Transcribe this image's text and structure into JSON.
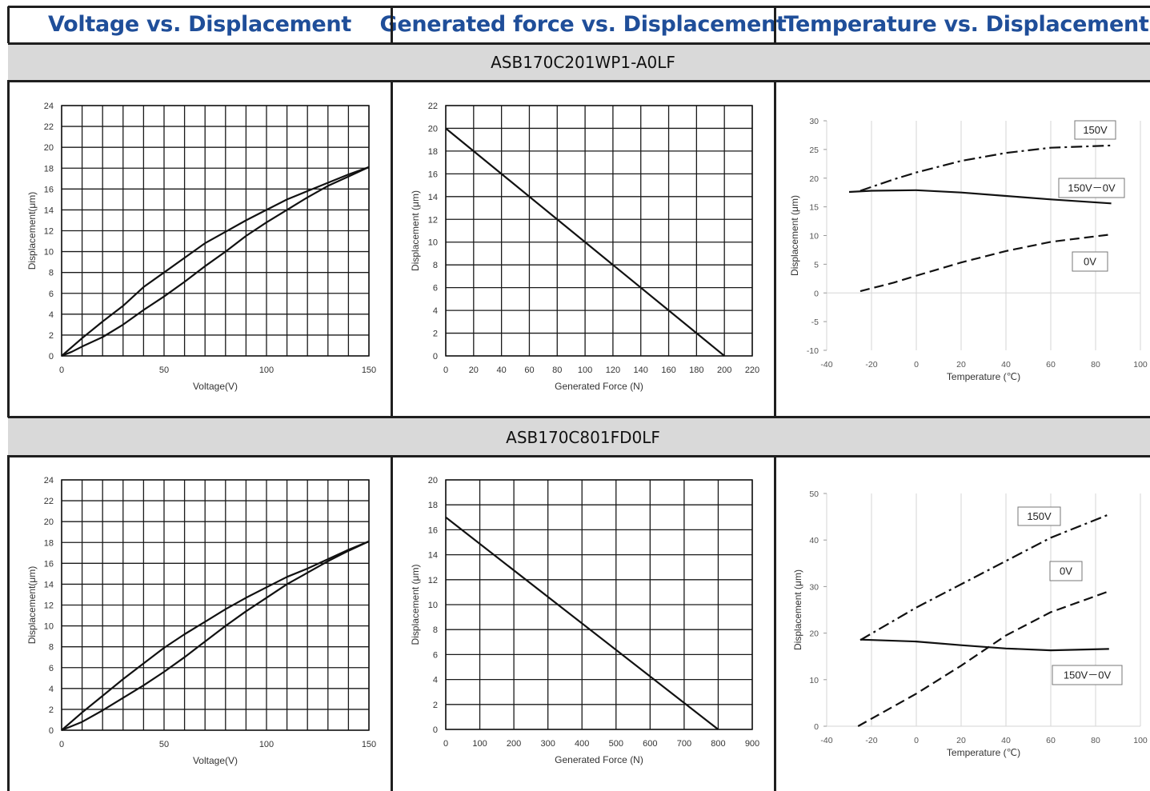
{
  "headers": [
    "Voltage vs. Displacement",
    "Generated force vs. Displacement",
    "Temperature vs. Displacement"
  ],
  "models": [
    "ASB170C201WP1-A0LF",
    "ASB170C801FD0LF"
  ],
  "chart_data": [
    {
      "type": "line",
      "xlabel": "Voltage(V)",
      "ylabel": "Displacement(μm)",
      "xlim": [
        0,
        150
      ],
      "ylim": [
        0,
        24
      ],
      "xticks": [
        0,
        50,
        100,
        150
      ],
      "yticks": [
        0,
        2,
        4,
        6,
        8,
        10,
        12,
        14,
        16,
        18,
        20,
        22,
        24
      ],
      "grid": "on",
      "series": [
        {
          "values": [
            [
              0,
              0
            ],
            [
              10,
              1.7
            ],
            [
              20,
              3.3
            ],
            [
              30,
              4.8
            ],
            [
              40,
              6.6
            ],
            [
              50,
              8.0
            ],
            [
              60,
              9.4
            ],
            [
              70,
              10.8
            ],
            [
              80,
              11.9
            ],
            [
              90,
              13.0
            ],
            [
              100,
              14.0
            ],
            [
              110,
              15.0
            ],
            [
              120,
              15.8
            ],
            [
              130,
              16.6
            ],
            [
              140,
              17.4
            ],
            [
              150,
              18.1
            ]
          ],
          "style": "solid"
        },
        {
          "values": [
            [
              0,
              0
            ],
            [
              5,
              0.4
            ],
            [
              10,
              0.9
            ],
            [
              20,
              1.8
            ],
            [
              30,
              3.0
            ],
            [
              40,
              4.4
            ],
            [
              50,
              5.7
            ],
            [
              60,
              7.1
            ],
            [
              70,
              8.6
            ],
            [
              80,
              10.0
            ],
            [
              90,
              11.5
            ],
            [
              100,
              12.8
            ],
            [
              110,
              14.0
            ],
            [
              120,
              15.2
            ],
            [
              130,
              16.3
            ],
            [
              140,
              17.2
            ],
            [
              150,
              18.1
            ]
          ],
          "style": "solid"
        }
      ]
    },
    {
      "type": "line",
      "xlabel": "Generated Force (N)",
      "ylabel": "Displacement (μm)",
      "xlim": [
        0,
        220
      ],
      "ylim": [
        0,
        22
      ],
      "xticks": [
        0,
        20,
        40,
        60,
        80,
        100,
        120,
        140,
        160,
        180,
        200,
        220
      ],
      "yticks": [
        0,
        2,
        4,
        6,
        8,
        10,
        12,
        14,
        16,
        18,
        20,
        22
      ],
      "grid": "on",
      "series": [
        {
          "values": [
            [
              0,
              20
            ],
            [
              200,
              0
            ]
          ],
          "style": "solid"
        }
      ]
    },
    {
      "type": "line",
      "xlabel": "Temperature (℃)",
      "ylabel": "Displacement (μm)",
      "xlim": [
        -40,
        100
      ],
      "ylim": [
        -10,
        30
      ],
      "xticks": [
        -40,
        -20,
        0,
        20,
        40,
        60,
        80,
        100
      ],
      "yticks": [
        -10,
        -5,
        0,
        5,
        10,
        15,
        20,
        25,
        30
      ],
      "grid": "vertical",
      "series": [
        {
          "name": "150V",
          "values": [
            [
              -25,
              17.8
            ],
            [
              -10,
              19.8
            ],
            [
              0,
              21.0
            ],
            [
              20,
              23.0
            ],
            [
              40,
              24.4
            ],
            [
              60,
              25.3
            ],
            [
              87,
              25.7
            ]
          ],
          "style": "dashdot"
        },
        {
          "name": "150V－0V",
          "values": [
            [
              -30,
              17.6
            ],
            [
              -20,
              17.8
            ],
            [
              0,
              17.9
            ],
            [
              20,
              17.5
            ],
            [
              40,
              16.9
            ],
            [
              60,
              16.3
            ],
            [
              87,
              15.6
            ]
          ],
          "style": "solid"
        },
        {
          "name": "0V",
          "values": [
            [
              -25,
              0.3
            ],
            [
              -10,
              1.8
            ],
            [
              0,
              3.0
            ],
            [
              20,
              5.3
            ],
            [
              40,
              7.3
            ],
            [
              60,
              8.9
            ],
            [
              87,
              10.2
            ]
          ],
          "style": "dashed"
        }
      ],
      "annotations": [
        "150V",
        "150V－0V",
        "0V"
      ]
    },
    {
      "type": "line",
      "xlabel": "Voltage(V)",
      "ylabel": "Displacement(μm)",
      "xlim": [
        0,
        150
      ],
      "ylim": [
        0,
        24
      ],
      "xticks": [
        0,
        50,
        100,
        150
      ],
      "yticks": [
        0,
        2,
        4,
        6,
        8,
        10,
        12,
        14,
        16,
        18,
        20,
        22,
        24
      ],
      "grid": "on",
      "series": [
        {
          "values": [
            [
              0,
              0
            ],
            [
              10,
              1.7
            ],
            [
              20,
              3.3
            ],
            [
              30,
              4.9
            ],
            [
              40,
              6.4
            ],
            [
              50,
              7.9
            ],
            [
              60,
              9.2
            ],
            [
              70,
              10.4
            ],
            [
              80,
              11.6
            ],
            [
              90,
              12.7
            ],
            [
              100,
              13.7
            ],
            [
              110,
              14.7
            ],
            [
              120,
              15.5
            ],
            [
              130,
              16.4
            ],
            [
              140,
              17.3
            ],
            [
              150,
              18.1
            ]
          ],
          "style": "solid"
        },
        {
          "values": [
            [
              0,
              0
            ],
            [
              10,
              0.8
            ],
            [
              20,
              1.9
            ],
            [
              30,
              3.1
            ],
            [
              40,
              4.3
            ],
            [
              50,
              5.6
            ],
            [
              60,
              7.0
            ],
            [
              70,
              8.5
            ],
            [
              80,
              10.0
            ],
            [
              90,
              11.4
            ],
            [
              100,
              12.7
            ],
            [
              110,
              14.0
            ],
            [
              120,
              15.1
            ],
            [
              130,
              16.2
            ],
            [
              140,
              17.2
            ],
            [
              150,
              18.1
            ]
          ],
          "style": "solid"
        }
      ]
    },
    {
      "type": "line",
      "xlabel": "Generated Force (N)",
      "ylabel": "Displacement (μm)",
      "xlim": [
        0,
        900
      ],
      "ylim": [
        0,
        20
      ],
      "xticks": [
        0,
        100,
        200,
        300,
        400,
        500,
        600,
        700,
        800,
        900
      ],
      "yticks": [
        0,
        2,
        4,
        6,
        8,
        10,
        12,
        14,
        16,
        18,
        20
      ],
      "grid": "on",
      "series": [
        {
          "values": [
            [
              0,
              17
            ],
            [
              800,
              0
            ]
          ],
          "style": "solid"
        }
      ]
    },
    {
      "type": "line",
      "xlabel": "Temperature (℃)",
      "ylabel": "Displacement (μm)",
      "xlim": [
        -40,
        100
      ],
      "ylim": [
        0,
        50
      ],
      "xticks": [
        -40,
        -20,
        0,
        20,
        40,
        60,
        80,
        100
      ],
      "yticks": [
        0,
        10,
        20,
        30,
        40,
        50
      ],
      "grid": "vertical",
      "series": [
        {
          "name": "150V",
          "values": [
            [
              -25,
              18.5
            ],
            [
              0,
              25.5
            ],
            [
              20,
              30.5
            ],
            [
              40,
              35.5
            ],
            [
              60,
              40.5
            ],
            [
              86,
              45.5
            ]
          ],
          "style": "dashdot"
        },
        {
          "name": "150V－0V",
          "values": [
            [
              -25,
              18.6
            ],
            [
              0,
              18.2
            ],
            [
              20,
              17.4
            ],
            [
              40,
              16.7
            ],
            [
              60,
              16.3
            ],
            [
              86,
              16.6
            ]
          ],
          "style": "solid"
        },
        {
          "name": "0V",
          "values": [
            [
              -26,
              0
            ],
            [
              0,
              7.0
            ],
            [
              20,
              13.0
            ],
            [
              40,
              19.5
            ],
            [
              60,
              24.5
            ],
            [
              86,
              29.0
            ]
          ],
          "style": "dashed"
        }
      ],
      "annotations": [
        "150V",
        "0V",
        "150V－0V"
      ]
    }
  ]
}
